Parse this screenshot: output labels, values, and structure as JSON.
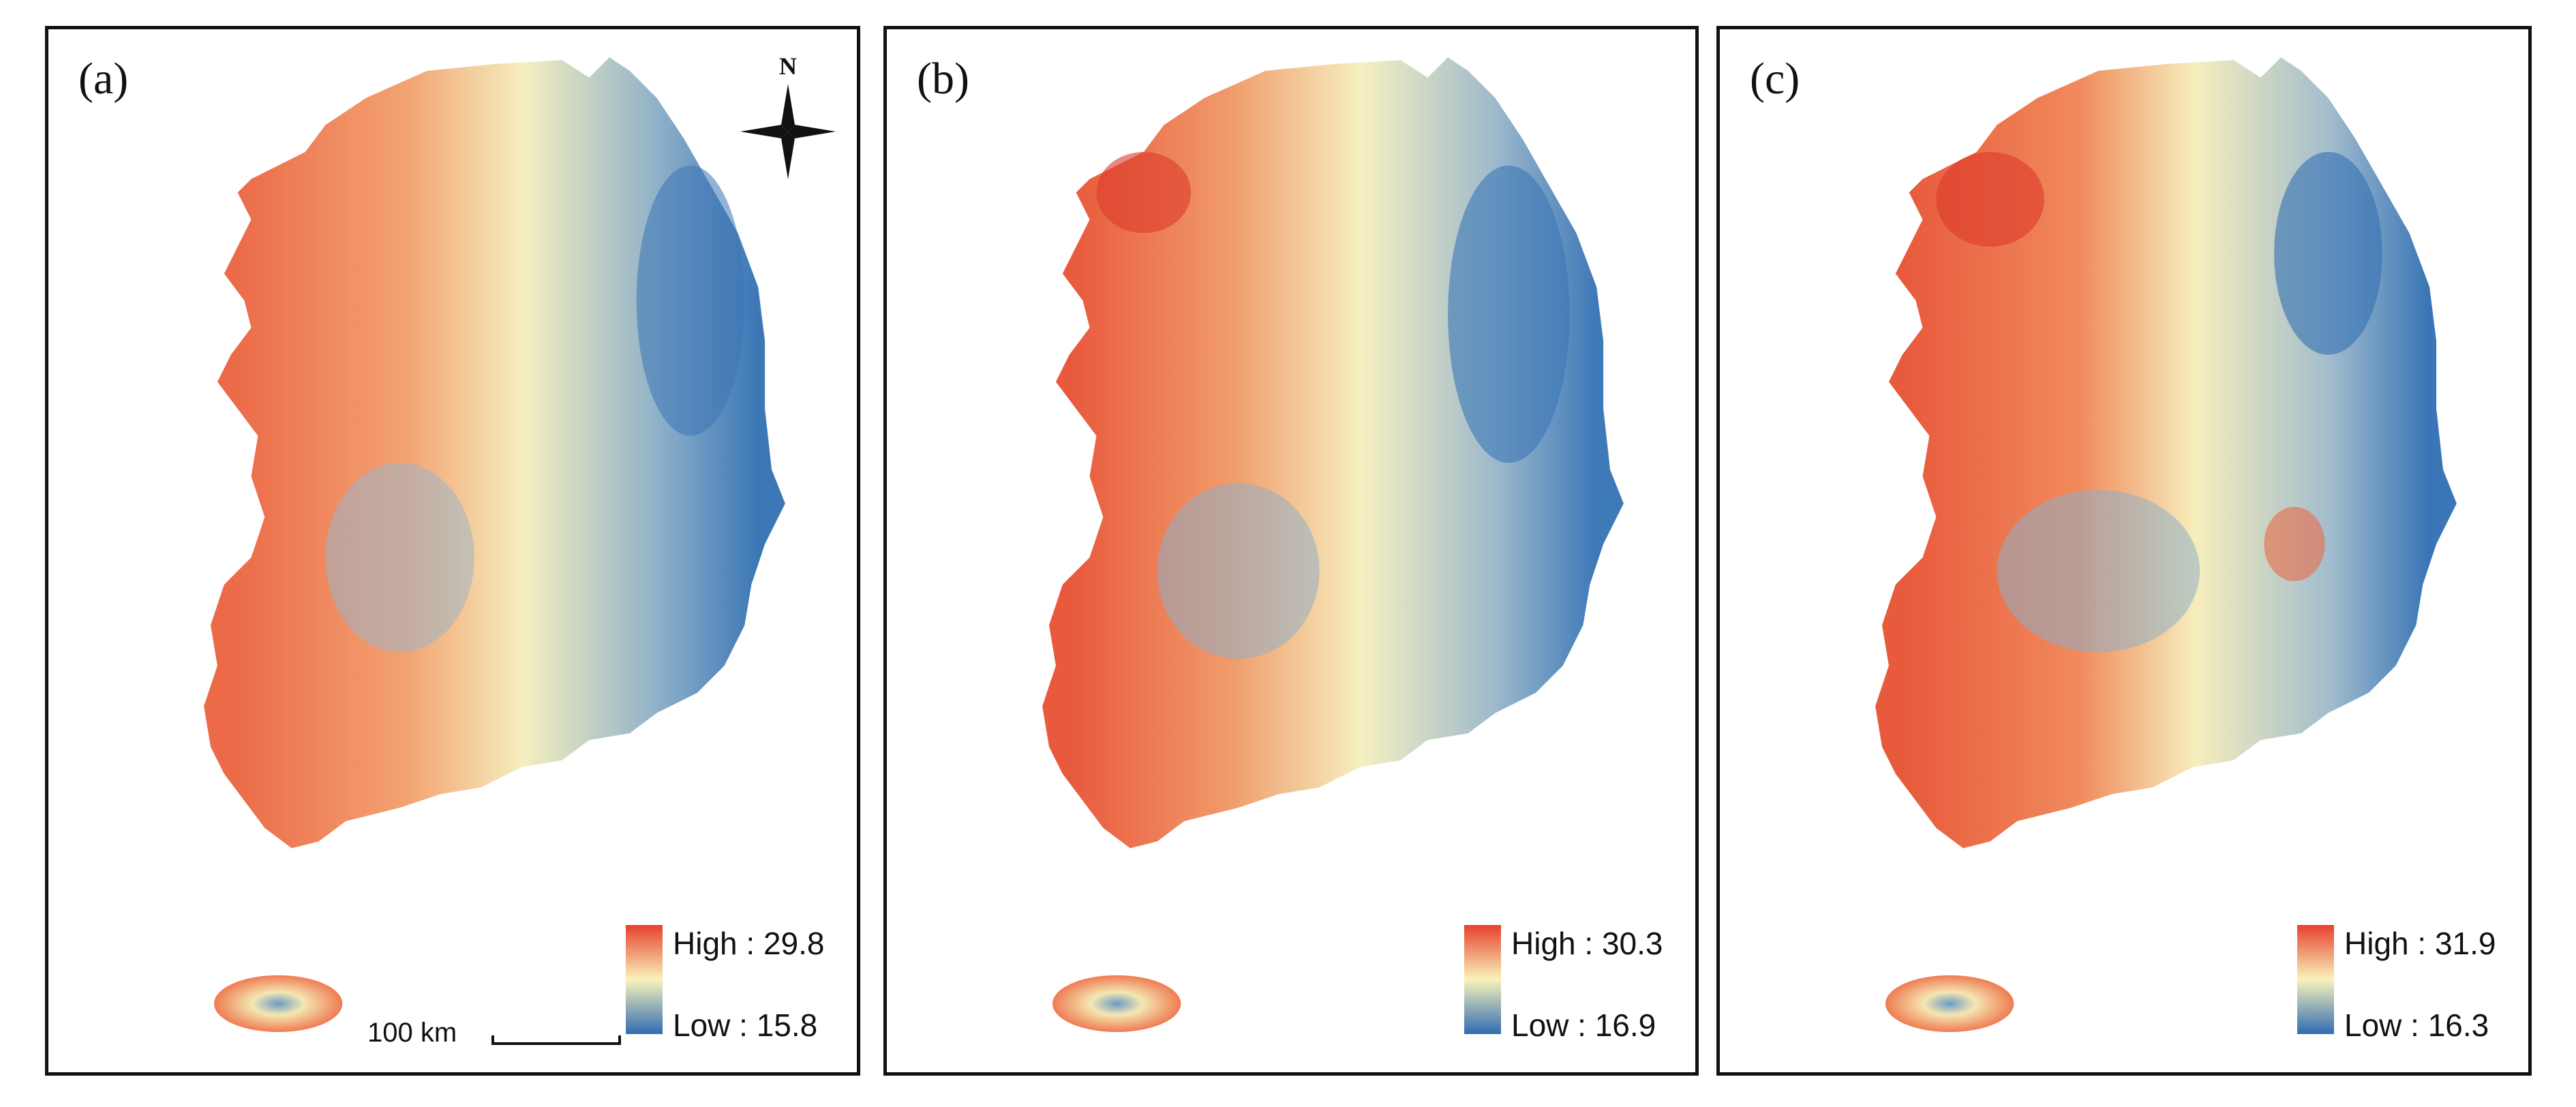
{
  "figure": {
    "description_type": "temperature-raster-maps",
    "north_label": "N",
    "scale_label": "100 km",
    "colors": {
      "high": "#e8402e",
      "mid": "#f8f3b9",
      "low": "#2f6cb2",
      "frame": "#111111"
    }
  },
  "panels": [
    {
      "id": "a",
      "label": "(a)",
      "legend_high": "High : 29.8",
      "legend_low": "Low : 15.8"
    },
    {
      "id": "b",
      "label": "(b)",
      "legend_high": "High : 30.3",
      "legend_low": "Low : 16.9"
    },
    {
      "id": "c",
      "label": "(c)",
      "legend_high": "High : 31.9",
      "legend_low": "Low : 16.3"
    }
  ]
}
